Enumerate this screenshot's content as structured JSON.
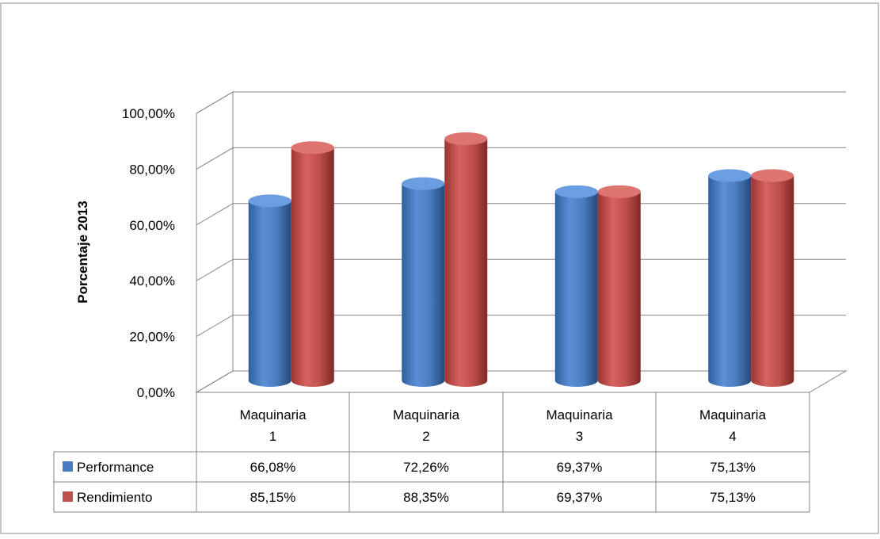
{
  "chart_data": {
    "type": "bar",
    "title": "",
    "xlabel": "",
    "ylabel": "Porcentaje 2013",
    "ylim": [
      0,
      100
    ],
    "yticks": [
      "0,00%",
      "20,00%",
      "40,00%",
      "60,00%",
      "80,00%",
      "100,00%"
    ],
    "categories": [
      [
        "Maquinaria",
        "1"
      ],
      [
        "Maquinaria",
        "2"
      ],
      [
        "Maquinaria",
        "3"
      ],
      [
        "Maquinaria",
        "4"
      ]
    ],
    "series": [
      {
        "name": "Performance",
        "color": "#4a7dc0",
        "values": [
          66.08,
          72.26,
          69.37,
          75.13
        ],
        "labels": [
          "66,08%",
          "72,26%",
          "69,37%",
          "75,13%"
        ]
      },
      {
        "name": "Rendimiento",
        "color": "#c0504d",
        "values": [
          85.15,
          88.35,
          69.37,
          75.13
        ],
        "labels": [
          "85,15%",
          "88,35%",
          "69,37%",
          "75,13%"
        ]
      }
    ],
    "grid": true,
    "legend": "data-table",
    "style": "3d-cylinder"
  }
}
